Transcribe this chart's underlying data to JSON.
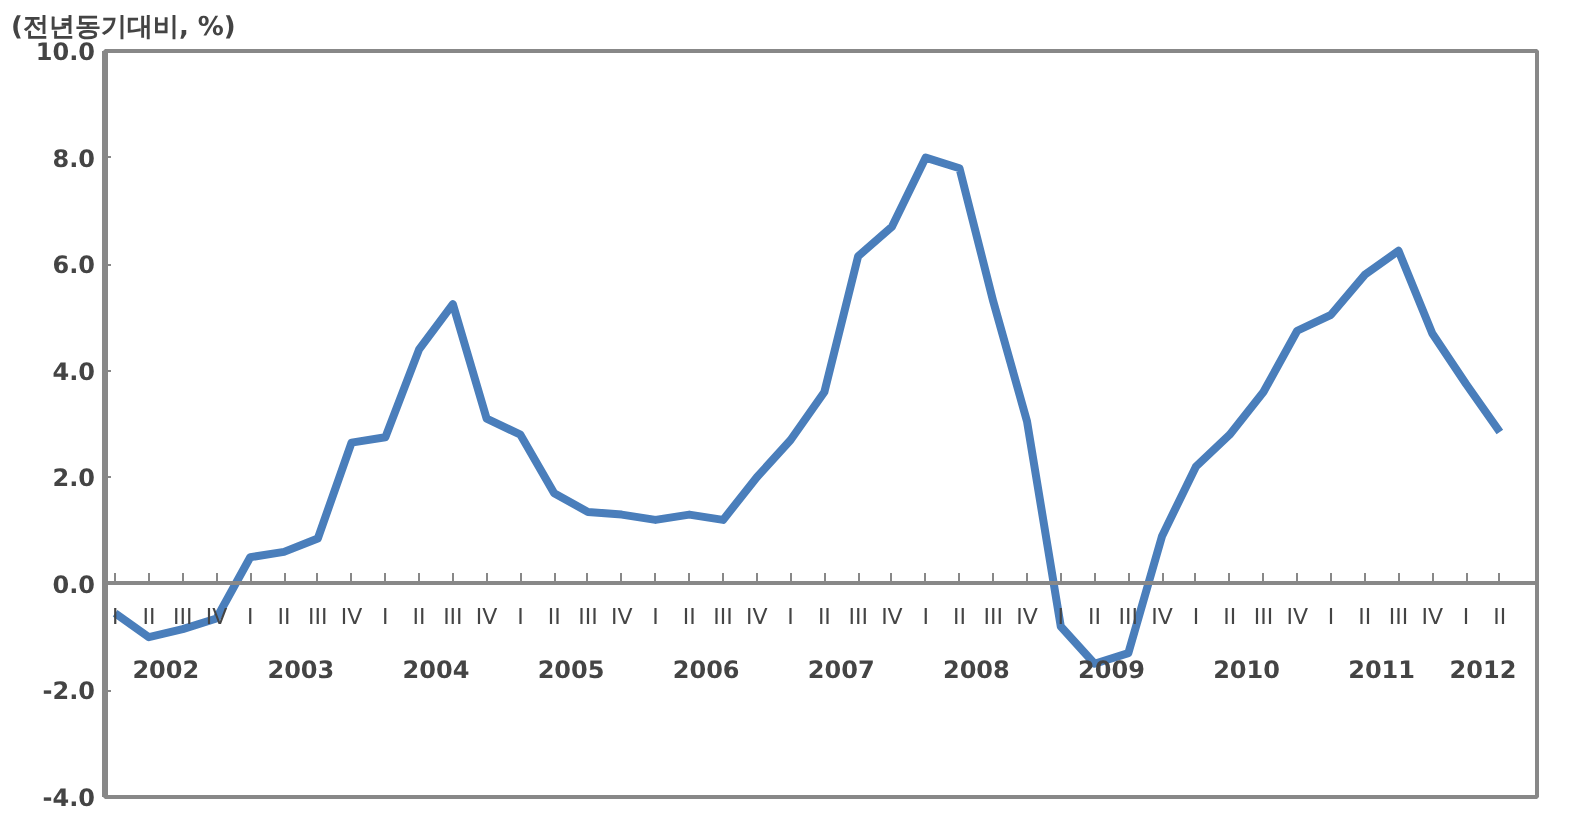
{
  "chart_data": {
    "type": "line",
    "ylabel": "(전년동기대비, %)",
    "categories": [
      "I",
      "II",
      "III",
      "IV",
      "I",
      "II",
      "III",
      "IV",
      "I",
      "II",
      "III",
      "IV",
      "I",
      "II",
      "III",
      "IV",
      "I",
      "II",
      "III",
      "IV",
      "I",
      "II",
      "III",
      "IV",
      "I",
      "II",
      "III",
      "IV",
      "I",
      "II",
      "III",
      "IV",
      "I",
      "II",
      "III",
      "IV",
      "I",
      "II",
      "III",
      "IV",
      "I",
      "II"
    ],
    "series": [
      {
        "color": "#4a7ebb",
        "values": [
          -0.55,
          -1.0,
          -0.85,
          -0.65,
          0.5,
          0.6,
          0.85,
          2.65,
          2.75,
          4.4,
          5.25,
          3.1,
          2.8,
          1.7,
          1.35,
          1.3,
          1.2,
          1.3,
          1.2,
          2.0,
          2.7,
          3.6,
          6.15,
          6.7,
          8.0,
          7.8,
          5.3,
          3.05,
          -0.8,
          -1.5,
          -1.3,
          0.9,
          2.2,
          2.8,
          3.6,
          4.75,
          5.05,
          5.8,
          6.25,
          4.7,
          3.75,
          2.85
        ]
      }
    ],
    "annotations": [
      "2002",
      "2003",
      "2004",
      "2005",
      "2006",
      "2007",
      "2008",
      "2009",
      "2010",
      "2011",
      "2012"
    ],
    "ylim": [
      -4,
      10
    ],
    "yticks": [
      {
        "value": -4,
        "label": "-4.0"
      },
      {
        "value": -2,
        "label": "-2.0"
      },
      {
        "value": 0,
        "label": "0.0"
      },
      {
        "value": 2,
        "label": "2.0"
      },
      {
        "value": 4,
        "label": "4.0"
      },
      {
        "value": 6,
        "label": "6.0"
      },
      {
        "value": 8,
        "label": "8.0"
      },
      {
        "value": 10,
        "label": "10.0"
      }
    ],
    "grid": false,
    "marker": "none",
    "line_style": "solid"
  }
}
